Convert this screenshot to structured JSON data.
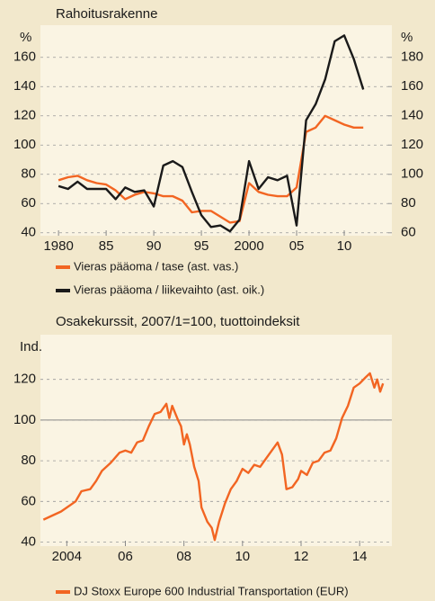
{
  "chart_data": [
    {
      "type": "line",
      "title": "Rahoitusrakenne",
      "ylabel": "%",
      "y2label": "%",
      "x": [
        1980,
        1981,
        1982,
        1983,
        1984,
        1985,
        1986,
        1987,
        1988,
        1989,
        1990,
        1991,
        1992,
        1993,
        1994,
        1995,
        1996,
        1997,
        1998,
        1999,
        2000,
        2001,
        2002,
        2003,
        2004,
        2005,
        2006,
        2007,
        2008,
        2009,
        2010,
        2011,
        2012
      ],
      "series": [
        {
          "name": "Vieras pääoma / tase (ast. vas.)",
          "color": "#f26522",
          "values": [
            76,
            78,
            79,
            76,
            74,
            73,
            69,
            63,
            66,
            68,
            67,
            65,
            65,
            62,
            54,
            55,
            55,
            51,
            47,
            48,
            74,
            68,
            66,
            65,
            65,
            71,
            109,
            112,
            120,
            117,
            114,
            112,
            112
          ]
        },
        {
          "name": "Vieras pääoma / liikevaihto (ast. oik.)",
          "color": "#1a1a1a",
          "axis": "y2",
          "values": [
            92,
            90,
            95,
            90,
            90,
            90,
            83,
            91,
            88,
            89,
            78,
            106,
            109,
            105,
            88,
            72,
            64,
            65,
            61,
            69,
            109,
            90,
            98,
            96,
            99,
            65,
            137,
            148,
            165,
            191,
            195,
            179,
            158
          ]
        }
      ],
      "xlim": [
        1978.1,
        2015
      ],
      "xticks": [
        1980,
        {
          "value": 1985,
          "label": "85"
        },
        {
          "value": 1990,
          "label": "90"
        },
        {
          "value": 1995,
          "label": "95"
        },
        2000,
        {
          "value": 2005,
          "label": "05"
        },
        {
          "value": 2010,
          "label": "10"
        }
      ],
      "ylim": [
        38,
        182
      ],
      "yticks": [
        40,
        60,
        80,
        100,
        120,
        140,
        160
      ],
      "y2lim": [
        58,
        202
      ],
      "y2ticks": [
        60,
        80,
        100,
        120,
        140,
        160,
        180
      ],
      "grid": true
    },
    {
      "type": "line",
      "title": "Osakekurssit, 2007/1=100, tuottoindeksit",
      "ylabel": "Ind.",
      "x": [
        2003.2,
        2003.5,
        2003.8,
        2004.0,
        2004.3,
        2004.5,
        2004.8,
        2005.0,
        2005.2,
        2005.5,
        2005.8,
        2006.0,
        2006.2,
        2006.4,
        2006.6,
        2006.8,
        2007.0,
        2007.2,
        2007.4,
        2007.5,
        2007.6,
        2007.8,
        2007.9,
        2008.0,
        2008.1,
        2008.2,
        2008.35,
        2008.5,
        2008.6,
        2008.8,
        2008.95,
        2009.05,
        2009.2,
        2009.4,
        2009.6,
        2009.8,
        2010.0,
        2010.2,
        2010.4,
        2010.6,
        2010.8,
        2011.0,
        2011.2,
        2011.35,
        2011.5,
        2011.7,
        2011.9,
        2012.0,
        2012.2,
        2012.4,
        2012.6,
        2012.8,
        2013.0,
        2013.2,
        2013.4,
        2013.6,
        2013.8,
        2014.0,
        2014.2,
        2014.35,
        2014.5,
        2014.6,
        2014.7,
        2014.8
      ],
      "series": [
        {
          "name": "DJ Stoxx Europe 600 Industrial Transportation (EUR)",
          "color": "#f26522",
          "values": [
            51,
            53,
            55,
            57,
            60,
            65,
            66,
            70,
            75,
            79,
            84,
            85,
            84,
            89,
            90,
            97,
            103,
            104,
            108,
            101,
            107,
            100,
            97,
            88,
            93,
            88,
            77,
            70,
            57,
            50,
            47,
            41,
            50,
            59,
            66,
            70,
            76,
            74,
            78,
            77,
            81,
            85,
            89,
            83,
            66,
            67,
            71,
            75,
            73,
            79,
            80,
            84,
            85,
            91,
            101,
            107,
            116,
            118,
            121,
            123,
            116,
            120,
            114,
            118
          ]
        }
      ],
      "xlim": [
        2003.1,
        2015.1
      ],
      "xticks": [
        2004,
        {
          "value": 2006,
          "label": "06"
        },
        {
          "value": 2008,
          "label": "08"
        },
        {
          "value": 2010,
          "label": "10"
        },
        {
          "value": 2012,
          "label": "12"
        },
        {
          "value": 2014,
          "label": "14"
        }
      ],
      "ylim": [
        38,
        142
      ],
      "yticks": [
        40,
        60,
        80,
        100,
        120
      ],
      "refline": 100,
      "grid": true
    }
  ]
}
